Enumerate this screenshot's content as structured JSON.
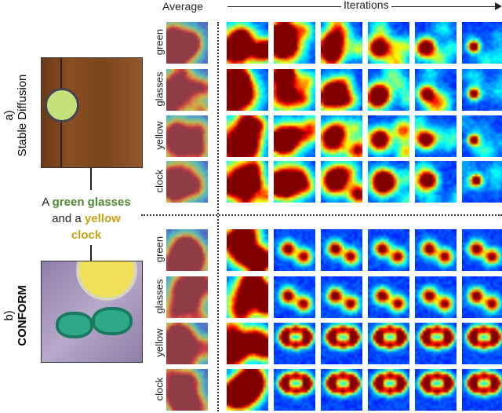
{
  "header": {
    "average": "Average",
    "iterations": "Iterations"
  },
  "sections": [
    {
      "label": "a)",
      "method": "Stable Diffusion",
      "bold": false
    },
    {
      "label": "b)",
      "method": "CONFORM",
      "bold": true
    }
  ],
  "prompt": {
    "p1": "A ",
    "green_glasses": "green glasses",
    "p2": "and a ",
    "yellow": "yellow",
    "clock": "clock"
  },
  "rows": [
    "green",
    "glasses",
    "yellow",
    "clock"
  ],
  "colors": {
    "green": "#4f8a35",
    "yellow": "#c9a010"
  },
  "iterations_shown": 6
}
